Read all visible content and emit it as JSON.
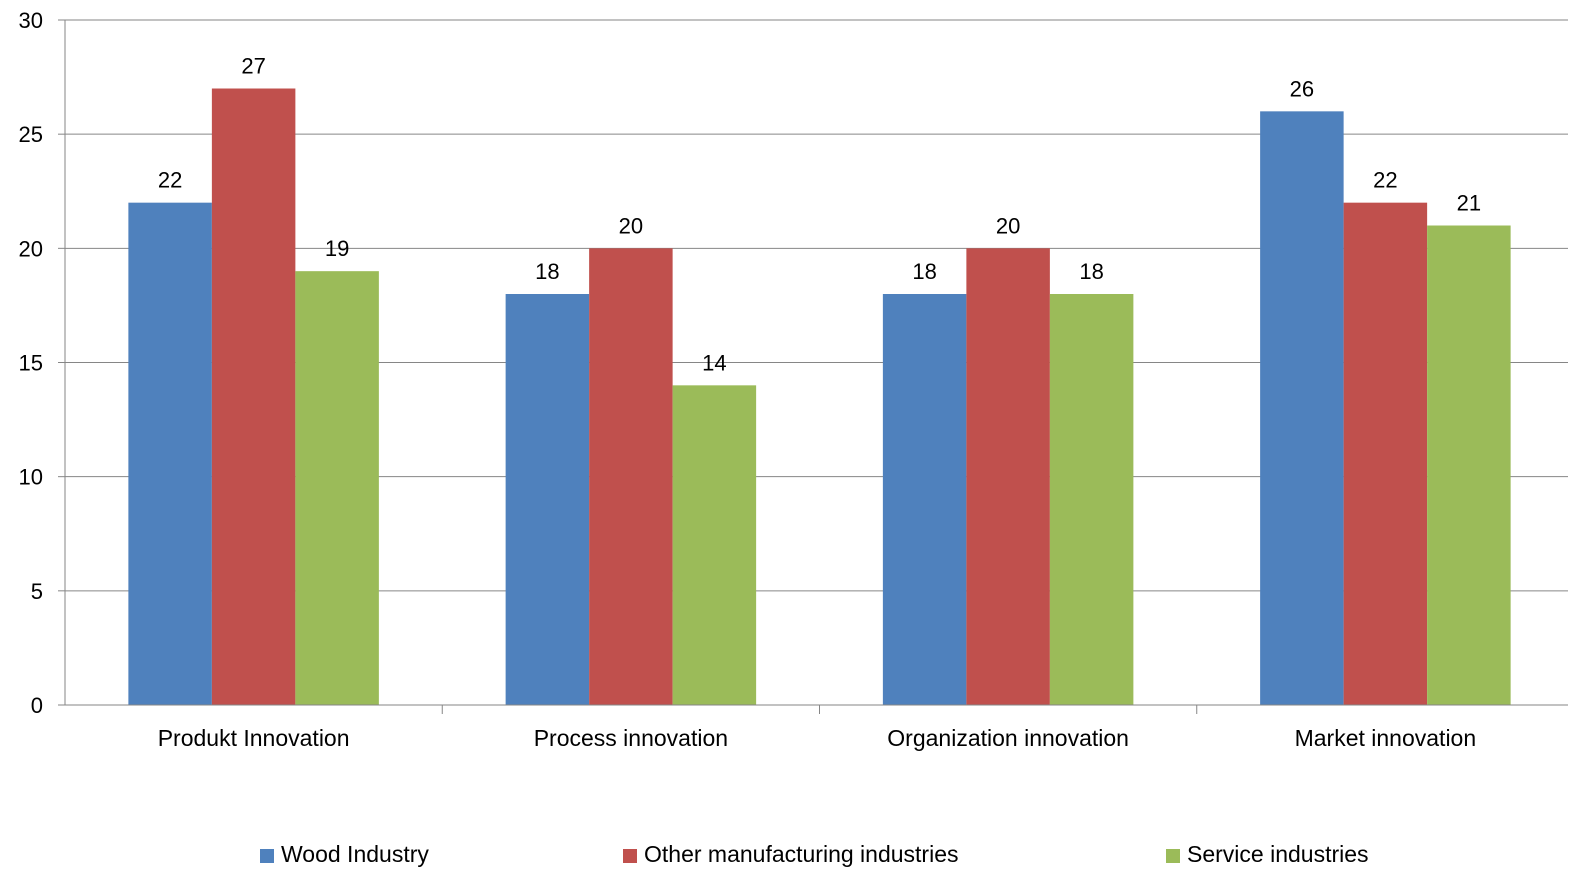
{
  "chart_data": {
    "type": "bar",
    "categories": [
      "Produkt Innovation",
      "Process innovation",
      "Organization innovation",
      "Market innovation"
    ],
    "series": [
      {
        "name": "Wood Industry",
        "values": [
          22,
          18,
          18,
          26
        ],
        "color": "#4F81BD"
      },
      {
        "name": "Other manufacturing industries",
        "values": [
          27,
          20,
          20,
          22
        ],
        "color": "#C0504D"
      },
      {
        "name": "Service industries",
        "values": [
          19,
          14,
          18,
          21
        ],
        "color": "#9BBB59"
      }
    ],
    "title": "",
    "xlabel": "",
    "ylabel": "",
    "ylim": [
      0,
      30
    ],
    "yticks": [
      0,
      5,
      10,
      15,
      20,
      25,
      30
    ],
    "grid": true,
    "legend": "bottom",
    "data_labels": true
  }
}
